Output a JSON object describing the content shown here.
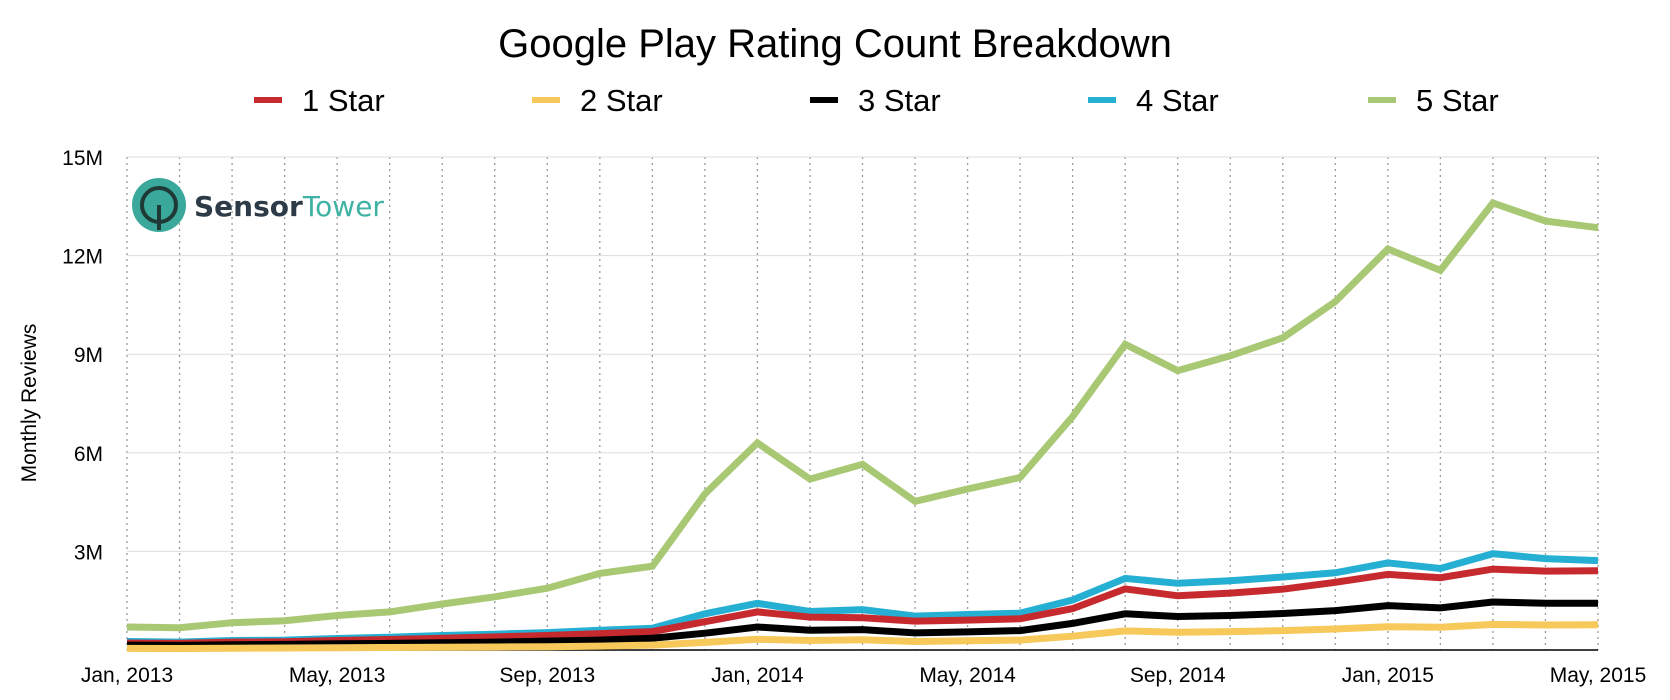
{
  "chart_data": {
    "type": "line",
    "title": "Google Play Rating Count Breakdown",
    "xlabel": "",
    "ylabel": "Monthly Reviews",
    "ylim": [
      0,
      15000000
    ],
    "yticks": [
      {
        "value": 3000000,
        "label": "3M"
      },
      {
        "value": 6000000,
        "label": "6M"
      },
      {
        "value": 9000000,
        "label": "9M"
      },
      {
        "value": 12000000,
        "label": "12M"
      },
      {
        "value": 15000000,
        "label": "15M"
      }
    ],
    "x_tick_labels": [
      {
        "index": 0,
        "label": "Jan, 2013"
      },
      {
        "index": 4,
        "label": "May, 2013"
      },
      {
        "index": 8,
        "label": "Sep, 2013"
      },
      {
        "index": 12,
        "label": "Jan, 2014"
      },
      {
        "index": 16,
        "label": "May, 2014"
      },
      {
        "index": 20,
        "label": "Sep, 2014"
      },
      {
        "index": 24,
        "label": "Jan, 2015"
      },
      {
        "index": 28,
        "label": "May, 2015"
      }
    ],
    "categories": [
      "Jan 2013",
      "Feb 2013",
      "Mar 2013",
      "Apr 2013",
      "May 2013",
      "Jun 2013",
      "Jul 2013",
      "Aug 2013",
      "Sep 2013",
      "Oct 2013",
      "Nov 2013",
      "Dec 2013",
      "Jan 2014",
      "Feb 2014",
      "Mar 2014",
      "Apr 2014",
      "May 2014",
      "Jun 2014",
      "Jul 2014",
      "Aug 2014",
      "Sep 2014",
      "Oct 2014",
      "Nov 2014",
      "Dec 2014",
      "Jan 2015",
      "Feb 2015",
      "Mar 2015",
      "Apr 2015",
      "May 2015"
    ],
    "grid": true,
    "legend_position": "top",
    "series": [
      {
        "name": "5 Star",
        "color": "#a8c874",
        "values": [
          700000,
          680000,
          830000,
          890000,
          1050000,
          1160000,
          1400000,
          1620000,
          1880000,
          2330000,
          2550000,
          4750000,
          6300000,
          5200000,
          5650000,
          4520000,
          4900000,
          5250000,
          7100000,
          9300000,
          8500000,
          8950000,
          9500000,
          10600000,
          12200000,
          11550000,
          13600000,
          13050000,
          12850000
        ]
      },
      {
        "name": "4 Star",
        "color": "#25afd3",
        "values": [
          260000,
          240000,
          290000,
          300000,
          350000,
          390000,
          440000,
          480000,
          530000,
          600000,
          660000,
          1100000,
          1420000,
          1170000,
          1230000,
          1030000,
          1080000,
          1120000,
          1520000,
          2180000,
          2030000,
          2110000,
          2220000,
          2350000,
          2650000,
          2480000,
          2930000,
          2780000,
          2720000
        ]
      },
      {
        "name": "1 Star",
        "color": "#c62a2e",
        "values": [
          210000,
          200000,
          240000,
          250000,
          290000,
          320000,
          360000,
          400000,
          440000,
          500000,
          560000,
          860000,
          1160000,
          1000000,
          980000,
          880000,
          910000,
          950000,
          1260000,
          1860000,
          1650000,
          1730000,
          1850000,
          2060000,
          2300000,
          2200000,
          2460000,
          2400000,
          2410000
        ]
      },
      {
        "name": "3 Star",
        "color": "#000000",
        "values": [
          150000,
          140000,
          160000,
          170000,
          190000,
          200000,
          220000,
          240000,
          270000,
          300000,
          360000,
          510000,
          700000,
          600000,
          620000,
          520000,
          550000,
          590000,
          810000,
          1100000,
          1020000,
          1050000,
          1110000,
          1200000,
          1350000,
          1280000,
          1460000,
          1420000,
          1420000
        ]
      },
      {
        "name": "2 Star",
        "color": "#f7c85a",
        "values": [
          50000,
          45000,
          55000,
          60000,
          70000,
          75000,
          85000,
          90000,
          100000,
          120000,
          150000,
          230000,
          330000,
          290000,
          310000,
          260000,
          280000,
          300000,
          420000,
          580000,
          540000,
          560000,
          590000,
          640000,
          710000,
          690000,
          780000,
          760000,
          770000
        ]
      }
    ],
    "legend": [
      {
        "name": "1 Star",
        "color": "#c62a2e"
      },
      {
        "name": "2 Star",
        "color": "#f7c85a"
      },
      {
        "name": "3 Star",
        "color": "#000000"
      },
      {
        "name": "4 Star",
        "color": "#25afd3"
      },
      {
        "name": "5 Star",
        "color": "#a8c874"
      }
    ]
  },
  "logo": {
    "brand_dark": "Sensor",
    "brand_light": "Tower",
    "circle_color": "#3aa89b"
  }
}
